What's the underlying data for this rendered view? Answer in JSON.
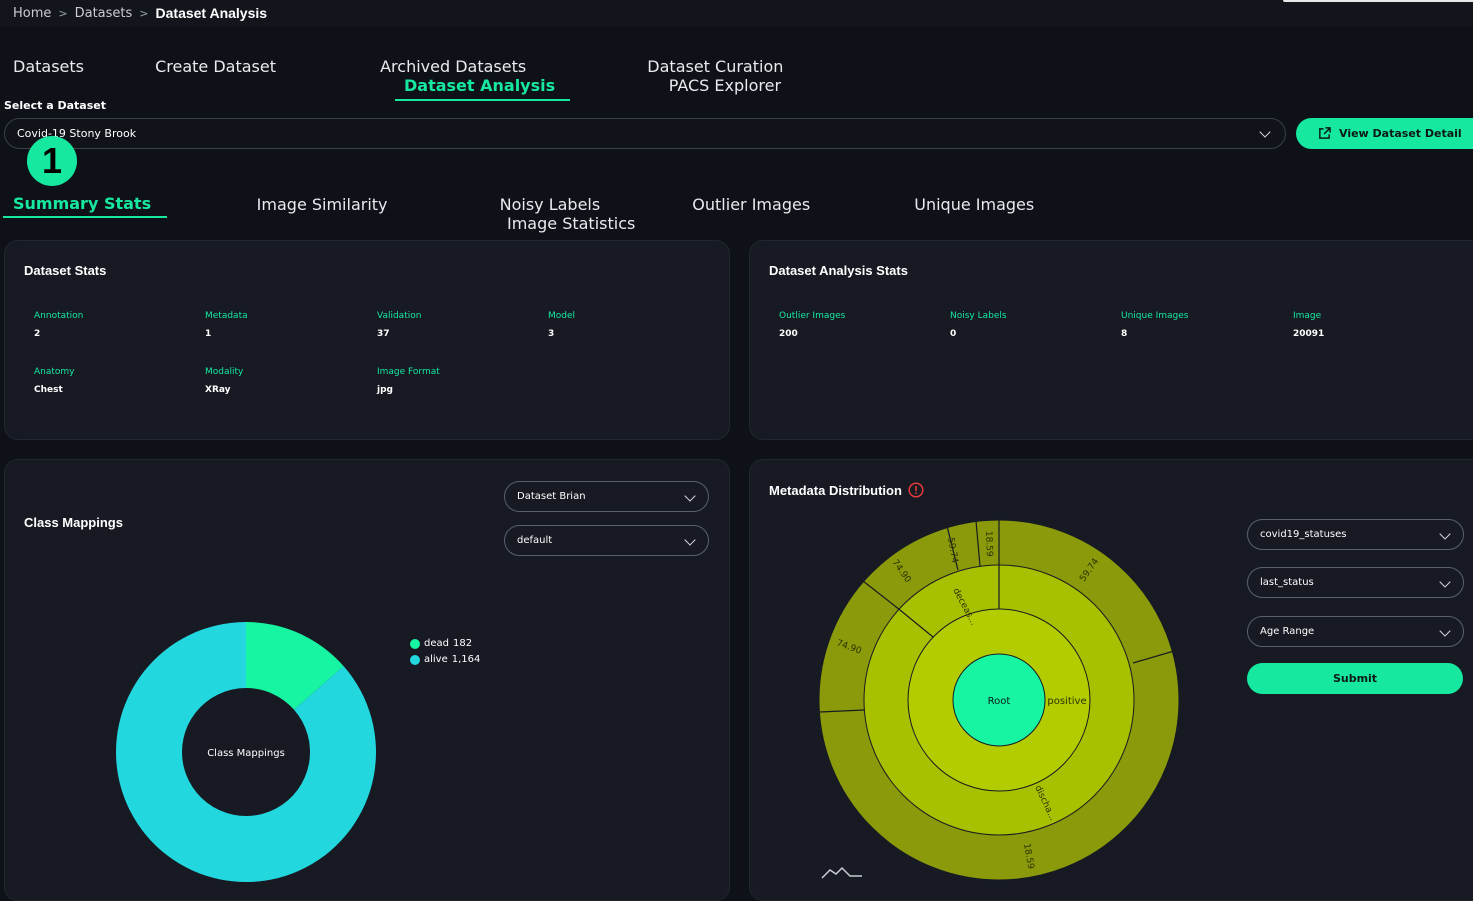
{
  "breadcrumb": {
    "home": "Home",
    "sep": ">",
    "datasets": "Datasets",
    "current": "Dataset Analysis"
  },
  "main_tabs": [
    "Datasets",
    "Create Dataset",
    "Archived Datasets",
    "Dataset Curation",
    "Dataset Analysis",
    "PACS Explorer"
  ],
  "select_label": "Select a Dataset",
  "selected_dataset": "Covid-19 Stony Brook",
  "view_detail_button": "View Dataset Detail",
  "step_badge": "1",
  "analysis_tabs": [
    "Summary Stats",
    "Image Similarity",
    "Noisy Labels",
    "Outlier Images",
    "Unique Images",
    "Image Statistics"
  ],
  "dataset_stats": {
    "title": "Dataset Stats",
    "items": [
      {
        "label": "Annotation",
        "value": "2"
      },
      {
        "label": "Metadata",
        "value": "1"
      },
      {
        "label": "Validation",
        "value": "37"
      },
      {
        "label": "Model",
        "value": "3"
      },
      {
        "label": "Anatomy",
        "value": "Chest"
      },
      {
        "label": "Modality",
        "value": "XRay"
      },
      {
        "label": "Image Format",
        "value": "jpg"
      }
    ]
  },
  "analysis_stats": {
    "title": "Dataset Analysis Stats",
    "items": [
      {
        "label": "Outlier Images",
        "value": "200"
      },
      {
        "label": "Noisy Labels",
        "value": "0"
      },
      {
        "label": "Unique Images",
        "value": "8"
      },
      {
        "label": "Image",
        "value": "20091"
      }
    ]
  },
  "class_mappings": {
    "title": "Class Mappings",
    "select_1": "Dataset Brian",
    "select_2": "default",
    "donut_center": "Class Mappings",
    "legend": [
      {
        "name": "dead",
        "value": "182",
        "color": "#17f5a2"
      },
      {
        "name": "alive",
        "value": "1,164",
        "color": "#22d8de"
      }
    ]
  },
  "metadata_distribution": {
    "title": "Metadata Distribution",
    "warning_icon": "alert-circle-icon",
    "selects": [
      "covid19_statuses",
      "last_status",
      "Age Range"
    ],
    "submit": "Submit",
    "sunburst_labels": {
      "root": "Root",
      "positive": "positive",
      "deceased": "deceas...",
      "discharged": "discha...",
      "v1": "59.74",
      "v2": "18.59",
      "v3": "74.90",
      "v4": "59.74",
      "v5": "74.90",
      "v6": "18.59"
    },
    "toolbar_icon": "plotly-logo-icon"
  },
  "colors": {
    "accent": "#17e8a0",
    "alive": "#22d8de",
    "dead": "#17f5a2"
  },
  "chart_data": {
    "type": "pie",
    "categories": [
      "dead",
      "alive"
    ],
    "values": [
      182,
      1164
    ],
    "title": "Class Mappings"
  }
}
